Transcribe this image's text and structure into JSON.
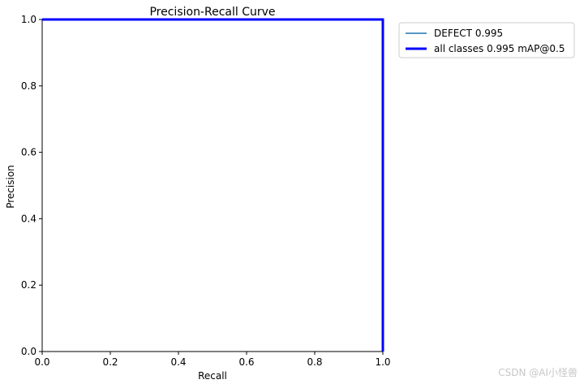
{
  "chart_data": {
    "type": "line",
    "title": "Precision-Recall Curve",
    "xlabel": "Recall",
    "ylabel": "Precision",
    "xlim": [
      0,
      1
    ],
    "ylim": [
      0,
      1
    ],
    "x_ticks": [
      "0.0",
      "0.2",
      "0.4",
      "0.6",
      "0.8",
      "1.0"
    ],
    "y_ticks": [
      "0.0",
      "0.2",
      "0.4",
      "0.6",
      "0.8",
      "1.0"
    ],
    "grid": false,
    "legend_position": "outside-top-right",
    "series": [
      {
        "name": "DEFECT 0.995",
        "color": "#1f77b4",
        "thin": true,
        "x": [
          0.0,
          0.995,
          1.0,
          1.0
        ],
        "y": [
          1.0,
          1.0,
          1.0,
          0.0
        ]
      },
      {
        "name": "all classes 0.995 mAP@0.5",
        "color": "#0000ff",
        "thin": false,
        "x": [
          0.0,
          0.995,
          1.0,
          1.0
        ],
        "y": [
          1.0,
          1.0,
          1.0,
          0.0
        ]
      }
    ]
  },
  "watermark": "CSDN @AI小怪兽"
}
